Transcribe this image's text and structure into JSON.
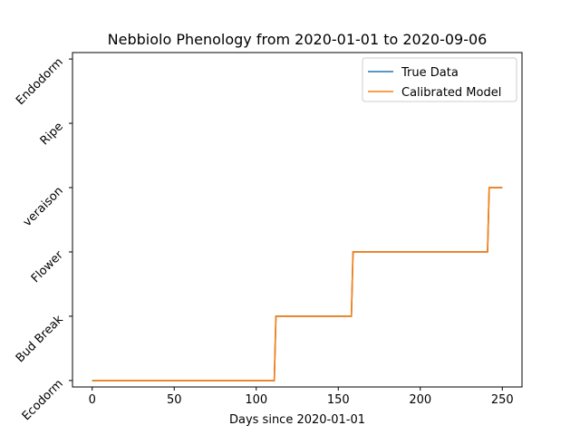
{
  "chart_data": {
    "type": "line",
    "title": "Nebbiolo Phenology from 2020-01-01 to 2020-09-06",
    "xlabel": "Days since 2020-01-01",
    "ylabel": "",
    "xlim": [
      -12,
      262
    ],
    "ylim": [
      -0.1,
      5.1
    ],
    "x_ticks": [
      0,
      50,
      100,
      150,
      200,
      250
    ],
    "y_categories": [
      "Ecodorm",
      "Bud Break",
      "Flower",
      "veraison",
      "Ripe",
      "Endodorm"
    ],
    "legend_position": "top-right",
    "grid": false,
    "series": [
      {
        "name": "True Data",
        "color": "#1f77b4",
        "x": [
          0,
          111,
          112,
          158,
          159,
          241,
          242,
          250
        ],
        "y": [
          0,
          0,
          1,
          1,
          2,
          2,
          3,
          3
        ]
      },
      {
        "name": "Calibrated Model",
        "color": "#ff7f0e",
        "x": [
          0,
          111,
          112,
          158,
          159,
          241,
          242,
          250
        ],
        "y": [
          0,
          0,
          1,
          1,
          2,
          2,
          3,
          3
        ]
      }
    ]
  }
}
